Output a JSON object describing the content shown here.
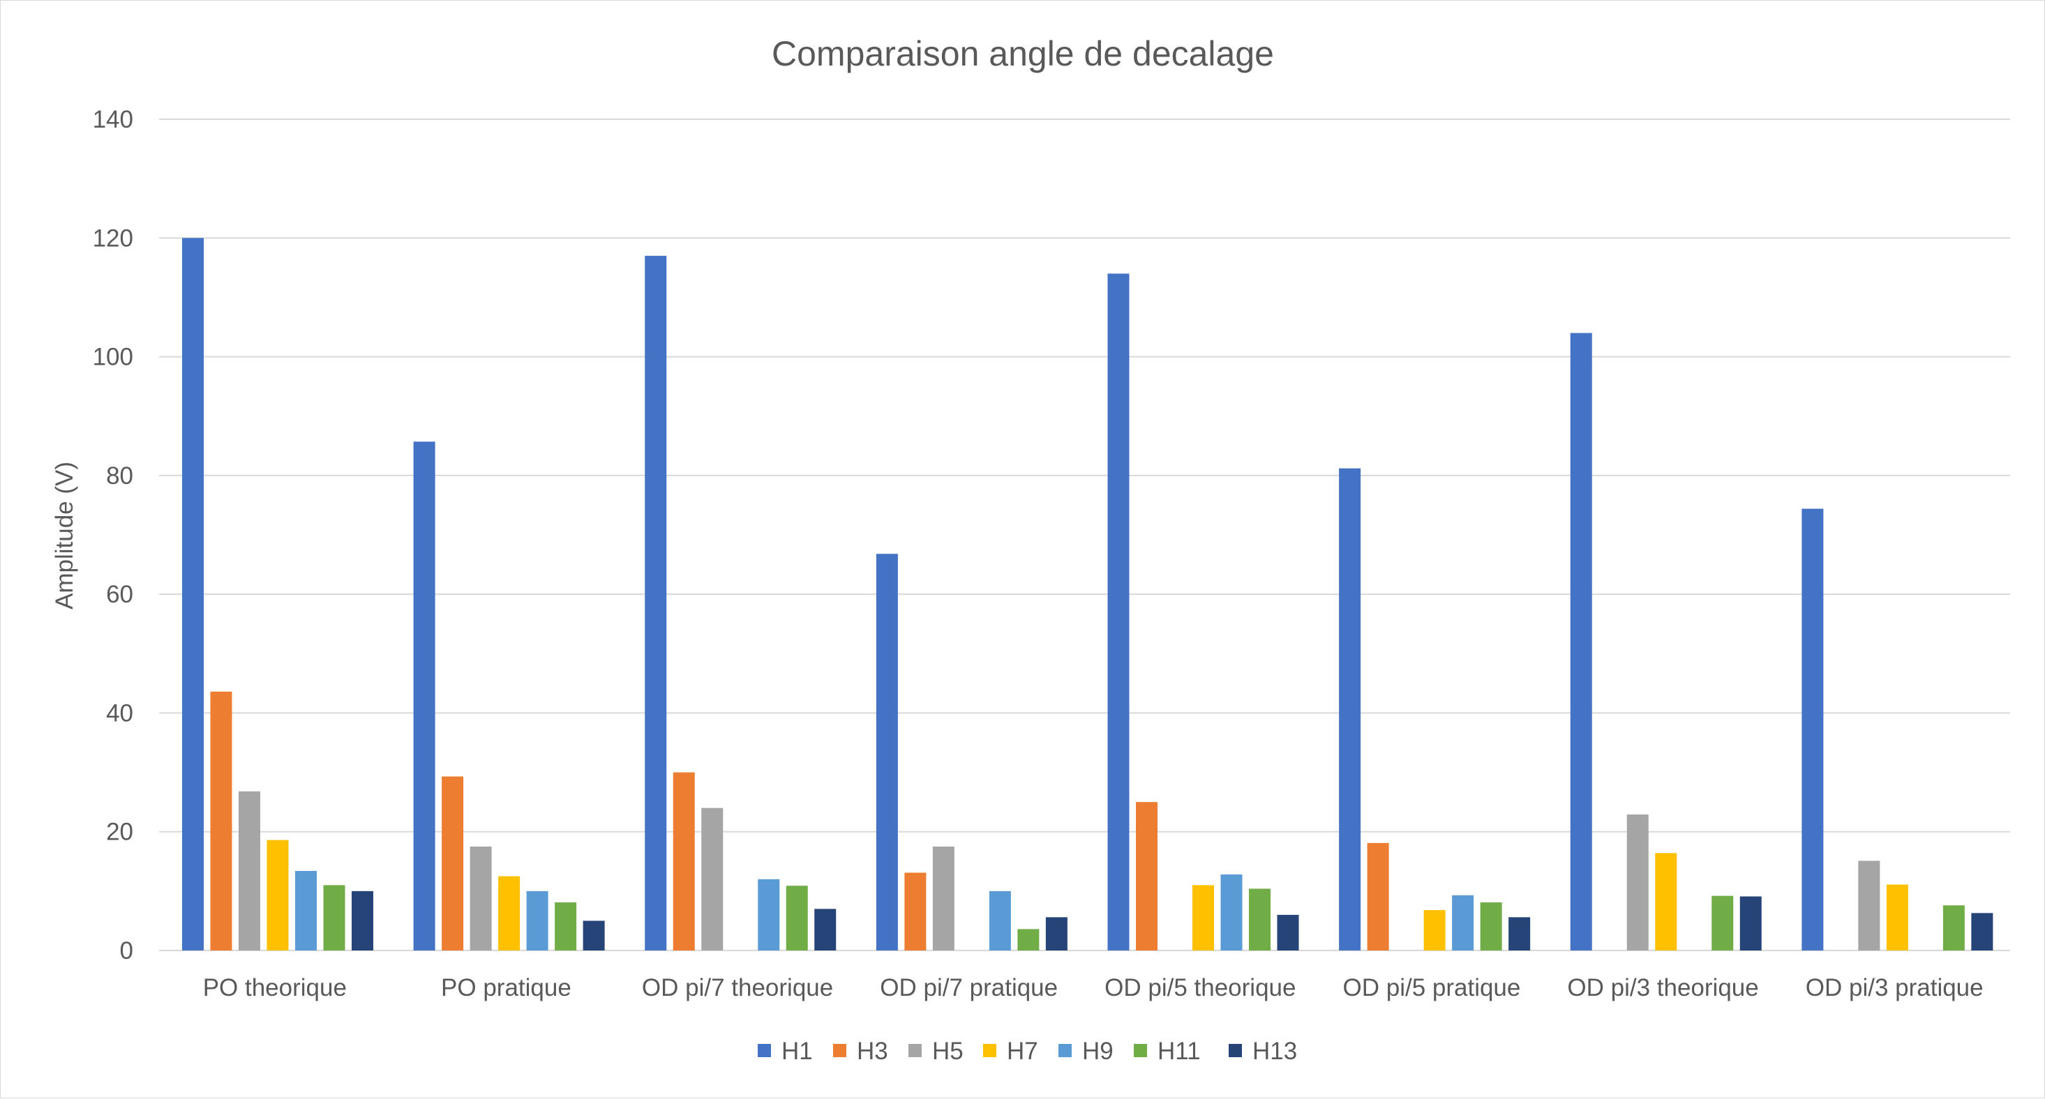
{
  "chart_data": {
    "type": "bar",
    "title": "Comparaison angle de decalage",
    "xlabel": "",
    "ylabel": "Amplitude (V)",
    "ylim": [
      0,
      140
    ],
    "yticks": [
      0,
      20,
      40,
      60,
      80,
      100,
      120,
      140
    ],
    "grid": true,
    "legend_position": "bottom",
    "categories": [
      "PO theorique",
      "PO pratique",
      "OD pi/7 theorique",
      "OD pi/7 pratique",
      "OD pi/5 theorique",
      "OD pi/5 pratique",
      "OD pi/3 theorique",
      "OD pi/3 pratique"
    ],
    "series": [
      {
        "name": "H1",
        "color": "#4472c4",
        "values": [
          120,
          85.7,
          117,
          66.8,
          114,
          81.2,
          104,
          74.4
        ]
      },
      {
        "name": "H3",
        "color": "#ed7d31",
        "values": [
          43.6,
          29.3,
          30,
          13.1,
          25,
          18.1,
          0,
          0
        ]
      },
      {
        "name": "H5",
        "color": "#a5a5a5",
        "values": [
          26.8,
          17.5,
          24,
          17.5,
          0,
          0,
          22.9,
          15.1
        ]
      },
      {
        "name": "H7",
        "color": "#ffc000",
        "values": [
          18.6,
          12.5,
          0,
          0,
          11,
          6.8,
          16.4,
          11.1
        ]
      },
      {
        "name": "H9",
        "color": "#5b9bd5",
        "values": [
          13.4,
          10,
          12,
          10,
          12.8,
          9.3,
          0,
          0
        ]
      },
      {
        "name": "H11",
        "color": "#70ad47",
        "values": [
          11,
          8.1,
          10.9,
          3.6,
          10.4,
          8.1,
          9.2,
          7.6
        ]
      },
      {
        "name": "H13",
        "color": "#264478",
        "values": [
          10,
          5,
          7,
          5.6,
          6,
          5.6,
          9.1,
          6.3
        ]
      }
    ]
  }
}
